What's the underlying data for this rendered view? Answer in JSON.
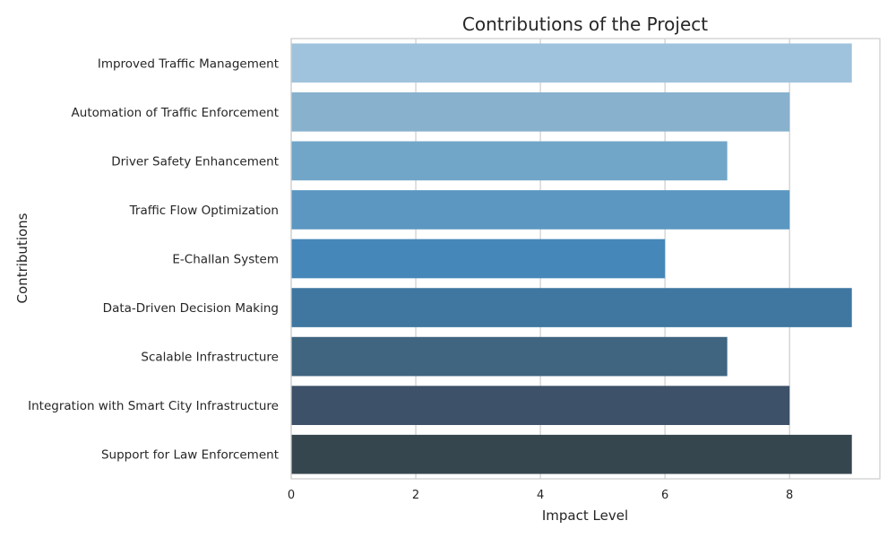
{
  "chart_data": {
    "type": "bar",
    "orientation": "horizontal",
    "title": "Contributions of the Project",
    "xlabel": "Impact Level",
    "ylabel": "Contributions",
    "categories": [
      "Improved Traffic Management",
      "Automation of Traffic Enforcement",
      "Driver Safety Enhancement",
      "Traffic Flow Optimization",
      "E-Challan System",
      "Data-Driven Decision Making",
      "Scalable Infrastructure",
      "Integration with Smart City Infrastructure",
      "Support for Law Enforcement"
    ],
    "values": [
      9,
      8,
      7,
      8,
      6,
      9,
      7,
      8,
      9
    ],
    "xlim": [
      0,
      9.45
    ],
    "xticks": [
      0,
      2,
      4,
      6,
      8
    ],
    "xtick_labels": [
      "0",
      "2",
      "4",
      "6",
      "8"
    ],
    "grid": "vertical",
    "colors": [
      "#9fc3dc",
      "#87b1cd",
      "#72a6c8",
      "#5b97c1",
      "#4587b9",
      "#3f77a0",
      "#3f6580",
      "#3d5168",
      "#36464f"
    ],
    "grid_color": "#cccccc",
    "frame_color": "#cccccc"
  }
}
